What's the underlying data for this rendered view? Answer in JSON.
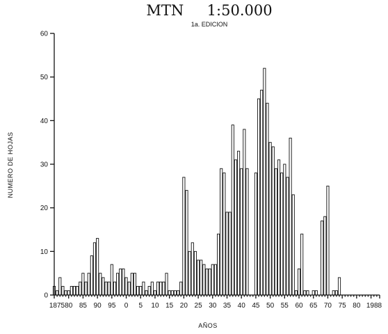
{
  "chart_data": {
    "type": "bar",
    "title": "MTN     1:50.000",
    "subtitle": "1a. EDICION",
    "xlabel": "AÑOS",
    "ylabel": "NUMERO DE HOJAS",
    "ylim": [
      0,
      60
    ],
    "yticks": [
      "0",
      "10",
      "20",
      "30",
      "40",
      "50",
      "60"
    ],
    "xlim": [
      1875,
      1988
    ],
    "xtick_labels": [
      "1875",
      "80",
      "85",
      "90",
      "95",
      "0",
      "5",
      "10",
      "15",
      "20",
      "25",
      "30",
      "35",
      "40",
      "45",
      "50",
      "55",
      "60",
      "65",
      "70",
      "75",
      "80",
      "1988"
    ],
    "grid": false,
    "legend": "none",
    "categories": [
      1875,
      1876,
      1877,
      1878,
      1879,
      1880,
      1881,
      1882,
      1883,
      1884,
      1885,
      1886,
      1887,
      1888,
      1889,
      1890,
      1891,
      1892,
      1893,
      1894,
      1895,
      1896,
      1897,
      1898,
      1899,
      1900,
      1901,
      1902,
      1903,
      1904,
      1905,
      1906,
      1907,
      1908,
      1909,
      1910,
      1911,
      1912,
      1913,
      1914,
      1915,
      1916,
      1917,
      1918,
      1919,
      1920,
      1921,
      1922,
      1923,
      1924,
      1925,
      1926,
      1927,
      1928,
      1929,
      1930,
      1931,
      1932,
      1933,
      1934,
      1935,
      1936,
      1937,
      1938,
      1939,
      1940,
      1941,
      1942,
      1943,
      1944,
      1945,
      1946,
      1947,
      1948,
      1949,
      1950,
      1951,
      1952,
      1953,
      1954,
      1955,
      1956,
      1957,
      1958,
      1959,
      1960,
      1961,
      1962,
      1963,
      1964,
      1965,
      1966,
      1967,
      1968,
      1969,
      1970,
      1971,
      1972,
      1973,
      1974,
      1975,
      1976,
      1977,
      1978,
      1979,
      1980,
      1981,
      1982,
      1983,
      1984,
      1985,
      1986,
      1987,
      1988
    ],
    "values": [
      2,
      1,
      4,
      2,
      1,
      1,
      2,
      2,
      2,
      3,
      5,
      3,
      5,
      9,
      12,
      13,
      5,
      4,
      3,
      3,
      7,
      3,
      5,
      6,
      6,
      4,
      3,
      5,
      5,
      2,
      2,
      3,
      1,
      2,
      3,
      1,
      3,
      3,
      3,
      5,
      1,
      1,
      1,
      1,
      3,
      27,
      24,
      10,
      12,
      10,
      8,
      8,
      7,
      6,
      6,
      7,
      7,
      14,
      29,
      28,
      19,
      19,
      39,
      31,
      33,
      29,
      38,
      29,
      0,
      0,
      28,
      45,
      47,
      52,
      44,
      35,
      34,
      29,
      31,
      28,
      30,
      27,
      36,
      23,
      1,
      6,
      14,
      1,
      1,
      0,
      1,
      1,
      0,
      17,
      18,
      25,
      0,
      1,
      1,
      4,
      0,
      0,
      0,
      0,
      0,
      0,
      0,
      0,
      0,
      0,
      0,
      0,
      0,
      0
    ]
  }
}
